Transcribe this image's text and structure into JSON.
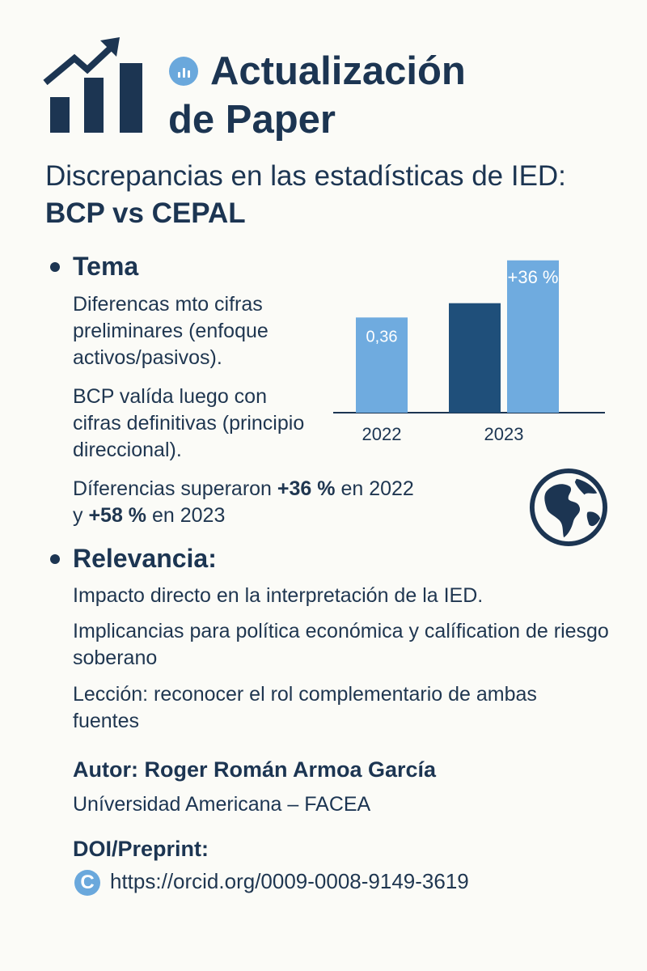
{
  "header": {
    "logo_icon": "rising-bar-chart-icon",
    "badge_icon": "bar-chart-badge-icon",
    "title": "Actualización de Paper",
    "subtitle_line1": "Discrepancias en las estadísticas de IED:",
    "subtitle_line2": "BCP vs CEPAL"
  },
  "tema": {
    "heading": "Tema",
    "p1": "Diferencas mto cifras preliminares (enfoque activos/pasivos).",
    "p2": "BCP valída luego con cifras definitivas (principio direccional).",
    "p3_pre": "Díferencias superaron ",
    "p3_b1": "+36 %",
    "p3_mid": " en 2022",
    "p3_line2_pre": "y ",
    "p3_b2": "+58 %",
    "p3_post": " en 2023"
  },
  "chart_data": {
    "type": "bar",
    "categories": [
      "2022",
      "2023"
    ],
    "series": [
      {
        "values": [
          1.0,
          1.15
        ],
        "colors": [
          "#6fabdf",
          "#1f4f7a"
        ]
      },
      {
        "values": [
          null,
          1.6
        ],
        "colors": [
          null,
          "#6fabdf"
        ]
      }
    ],
    "data_labels": [
      "0,36",
      "+36 %"
    ],
    "ylim": [
      0,
      1.7
    ],
    "grid": false,
    "colors": {
      "light": "#6fabdf",
      "dark": "#1f4f7a"
    }
  },
  "relevancia": {
    "heading": "Relevancia:",
    "p1": "Impacto directo en  la interpretación de la IED.",
    "p2": "Implicancias para política económica y calífication de riesgo soberano",
    "p3": "Lección: reconocer el rol complementario de ambas fuentes"
  },
  "globe_icon": "globe-americas-icon",
  "footer": {
    "author": "Autor: Roger Román Armoa García",
    "university": "Uníversidad Americana – FACEA",
    "doi_label": "DOI/Preprint:",
    "orcid_icon": "orcid-icon",
    "orcid_letter": "C",
    "orcid_url": "https://orcid.org/0009-0008-9149-3619"
  }
}
